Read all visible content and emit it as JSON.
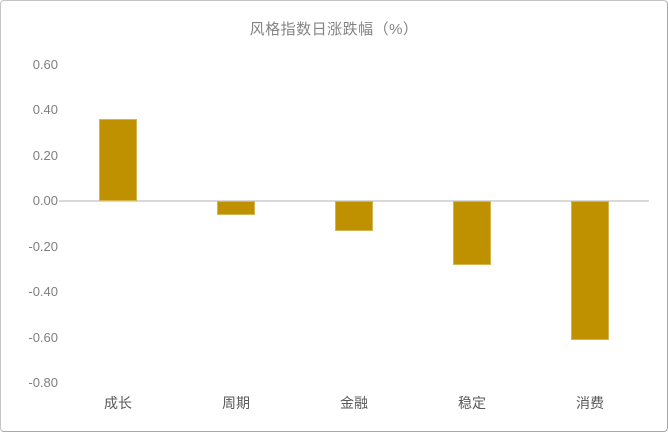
{
  "chart_data": {
    "type": "bar",
    "title": "风格指数日涨跌幅（%）",
    "categories": [
      "成长",
      "周期",
      "金融",
      "稳定",
      "消费"
    ],
    "values": [
      0.36,
      -0.06,
      -0.13,
      -0.28,
      -0.61
    ],
    "ytick_values": [
      0.6,
      0.4,
      0.2,
      0.0,
      -0.2,
      -0.4,
      -0.6,
      -0.8
    ],
    "ytick_labels": [
      "0.60",
      "0.40",
      "0.20",
      "0.00",
      "-0.20",
      "-0.40",
      "-0.60",
      "-0.80"
    ],
    "ylim": [
      -0.8,
      0.6
    ],
    "xlabel": "",
    "ylabel": "",
    "grid": false,
    "legend": false,
    "bar_color": "#BF9000",
    "bar_border_color": "#D5B54F",
    "zero_line_color": "#D9D9D9",
    "title_color": "#848484",
    "tick_label_color": "#7F7F7F",
    "category_label_color": "#595959",
    "card_border_color": "#C4C4C4",
    "background_color": "#FFFFFF"
  }
}
